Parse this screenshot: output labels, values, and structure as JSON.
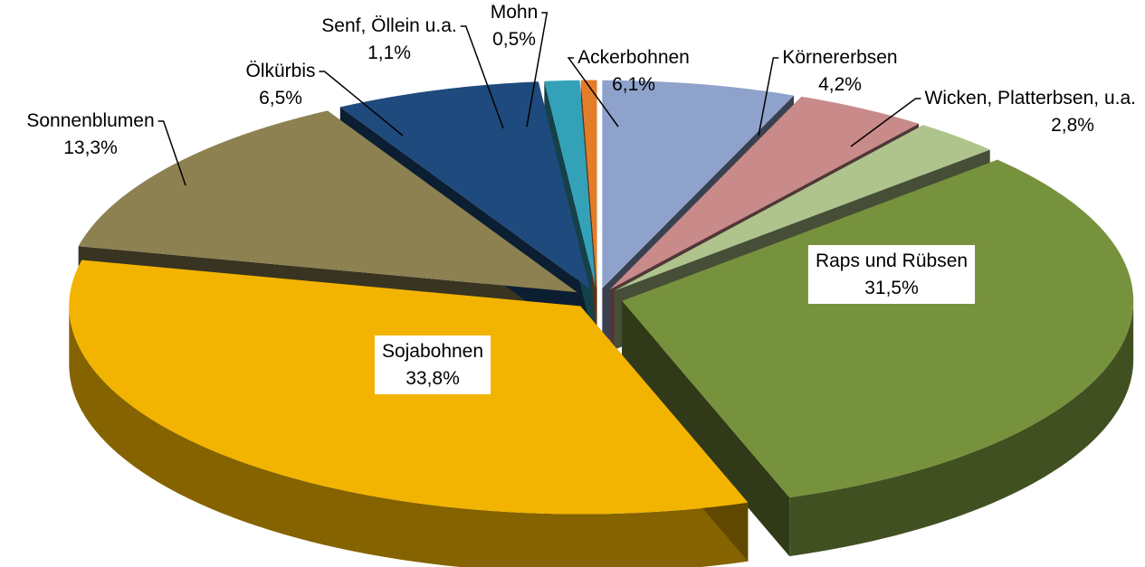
{
  "chart_data": {
    "type": "pie",
    "categories": [
      "Ackerbohnen",
      "Körnererbsen",
      "Wicken, Platterbsen, u.a.",
      "Raps und Rübsen",
      "Sojabohnen",
      "Sonnenblumen",
      "Ölkürbis",
      "Senf, Öllein u.a.",
      "Mohn"
    ],
    "values": [
      6.1,
      4.2,
      2.8,
      31.5,
      33.8,
      13.3,
      6.5,
      1.1,
      0.5
    ],
    "value_labels": [
      "6,1%",
      "4,2%",
      "2,8%",
      "31,5%",
      "33,8%",
      "13,3%",
      "6,5%",
      "1,1%",
      "0,5%"
    ],
    "colors": [
      "#8ea2cb",
      "#c98a8a",
      "#afc48c",
      "#77923c",
      "#f2b400",
      "#8d8152",
      "#1f4a7d",
      "#33a2b9",
      "#e37d2a"
    ]
  }
}
